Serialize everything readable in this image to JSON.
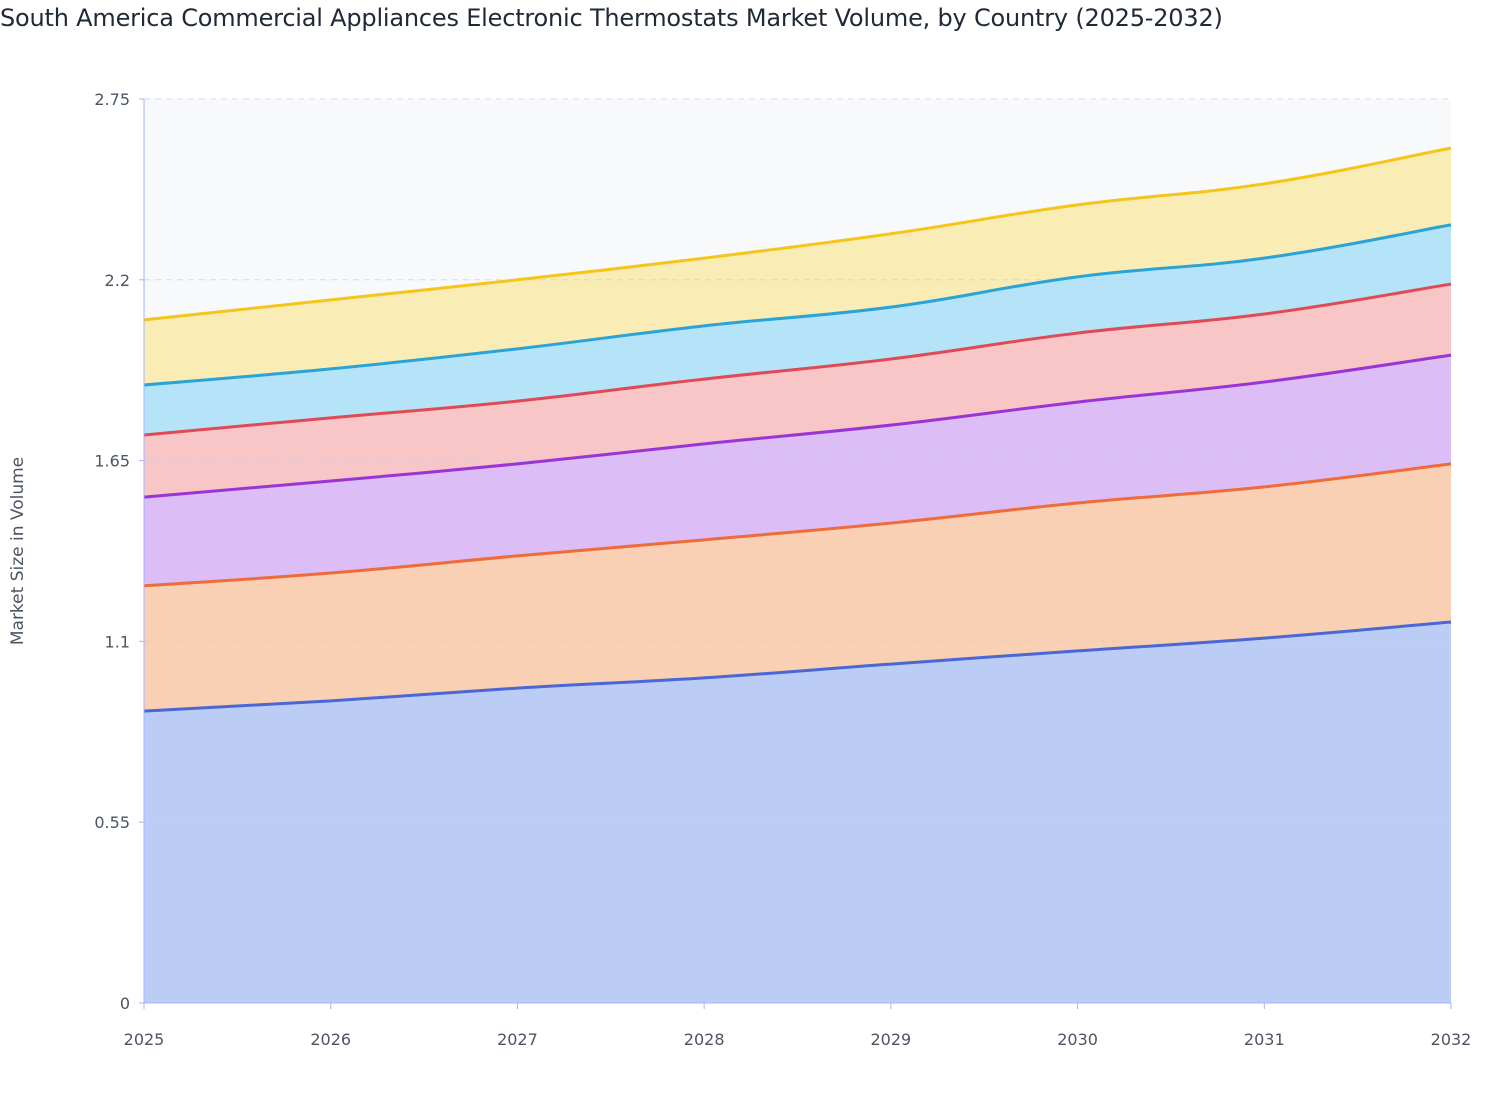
{
  "chart_data": {
    "type": "area",
    "stacked": true,
    "title": "South America Commercial Appliances Electronic Thermostats Market Volume, by Country (2025-2032)",
    "xlabel": "",
    "ylabel": "Market Size in Volume",
    "x": [
      "2025",
      "2026",
      "2027",
      "2028",
      "2029",
      "2030",
      "2031",
      "2032"
    ],
    "ylim": [
      0,
      2.75
    ],
    "yticks": [
      "0",
      "0.55",
      "1.1",
      "1.65",
      "2.2",
      "2.75"
    ],
    "grid": true,
    "legend": "none",
    "series": [
      {
        "values": [
          0.888,
          0.919,
          0.958,
          0.989,
          1.031,
          1.071,
          1.11,
          1.159
        ],
        "line": "#4a67d6",
        "fill": "#bccdf5"
      },
      {
        "values": [
          0.381,
          0.389,
          0.402,
          0.42,
          0.429,
          0.45,
          0.46,
          0.481
        ],
        "line": "#ef6b3a",
        "fill": "#f9d0b3"
      },
      {
        "values": [
          0.27,
          0.28,
          0.28,
          0.292,
          0.298,
          0.307,
          0.319,
          0.331
        ],
        "line": "#9b34d6",
        "fill": "#dcbdf5"
      },
      {
        "values": [
          0.189,
          0.192,
          0.191,
          0.197,
          0.201,
          0.21,
          0.207,
          0.216
        ],
        "line": "#e04a55",
        "fill": "#f8c6c6"
      },
      {
        "values": [
          0.152,
          0.149,
          0.159,
          0.162,
          0.158,
          0.171,
          0.17,
          0.18
        ],
        "line": "#2aa3d6",
        "fill": "#b5e3f7"
      },
      {
        "values": [
          0.198,
          0.21,
          0.21,
          0.206,
          0.223,
          0.219,
          0.226,
          0.234
        ],
        "line": "#f5c518",
        "fill": "#f9ecb5"
      }
    ]
  }
}
